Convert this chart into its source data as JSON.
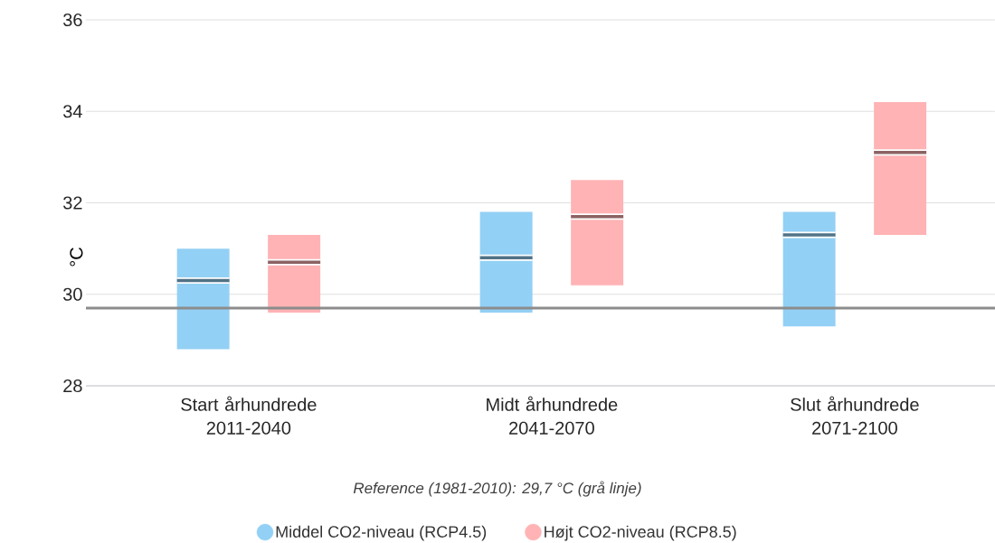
{
  "chart_data": {
    "type": "box",
    "categories": [
      "Start århundrede 2011-2040",
      "Midt århundrede 2041-2070",
      "Slut århundrede 2071-2100"
    ],
    "ylabel": "°C",
    "ylim": [
      28,
      36
    ],
    "yticks": [
      28,
      30,
      32,
      34,
      36
    ],
    "grid": "y",
    "legend": "bottom",
    "ref_lines": [
      {
        "axis": "y",
        "value": 29.7,
        "color": "#8c8c8c"
      }
    ],
    "annotations": [
      "Reference (1981-2010): 29,7 °C (grå linje)"
    ],
    "series": [
      {
        "name": "Middel CO2-niveau (RCP4.5)",
        "color": "#93d0f5",
        "boxes": [
          {
            "low": 28.8,
            "q1": 28.8,
            "median": 30.3,
            "q3": 31.0,
            "high": 31.0
          },
          {
            "low": 29.6,
            "q1": 29.6,
            "median": 30.8,
            "q3": 31.8,
            "high": 31.8
          },
          {
            "low": 29.3,
            "q1": 29.3,
            "median": 31.3,
            "q3": 31.8,
            "high": 31.8
          }
        ]
      },
      {
        "name": "Højt CO2-niveau (RCP8.5)",
        "color": "#ffb3b5",
        "boxes": [
          {
            "low": 29.6,
            "q1": 29.6,
            "median": 30.7,
            "q3": 31.3,
            "high": 31.3
          },
          {
            "low": 30.2,
            "q1": 30.2,
            "median": 31.7,
            "q3": 32.5,
            "high": 32.5
          },
          {
            "low": 31.3,
            "q1": 31.3,
            "median": 33.1,
            "q3": 34.2,
            "high": 34.2
          }
        ]
      }
    ]
  }
}
